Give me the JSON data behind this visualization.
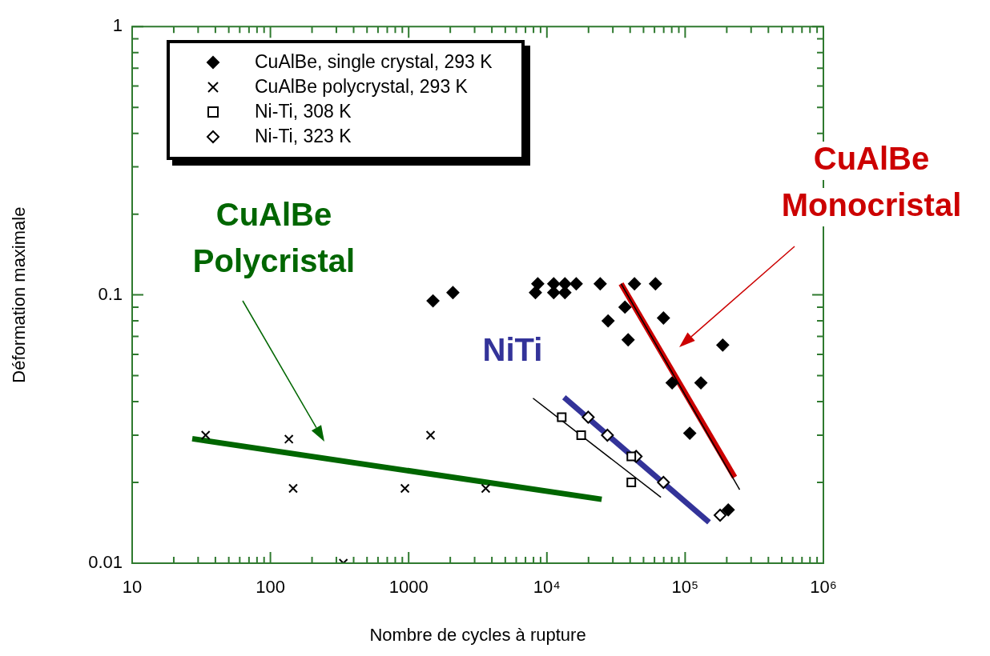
{
  "chart_data": {
    "type": "scatter",
    "xlabel": "Nombre de cycles à rupture",
    "ylabel": "Déformation maximale",
    "log": "xy",
    "grid": false,
    "legend": "top left",
    "xlim": [
      10,
      1000000
    ],
    "xticks": [
      10,
      {
        "value": 20,
        "label": null
      },
      {
        "value": 30,
        "label": null
      },
      {
        "value": 40,
        "label": null
      },
      {
        "value": 50,
        "label": null
      },
      {
        "value": 60,
        "label": null
      },
      {
        "value": 70,
        "label": null
      },
      {
        "value": 80,
        "label": null
      },
      {
        "value": 90,
        "label": null
      },
      100,
      {
        "value": 200,
        "label": null
      },
      {
        "value": 300,
        "label": null
      },
      {
        "value": 400,
        "label": null
      },
      {
        "value": 500,
        "label": null
      },
      {
        "value": 600,
        "label": null
      },
      {
        "value": 700,
        "label": null
      },
      {
        "value": 800,
        "label": null
      },
      {
        "value": 900,
        "label": null
      },
      1000,
      {
        "value": 2000,
        "label": null
      },
      {
        "value": 3000,
        "label": null
      },
      {
        "value": 4000,
        "label": null
      },
      {
        "value": 5000,
        "label": null
      },
      {
        "value": 6000,
        "label": null
      },
      {
        "value": 7000,
        "label": null
      },
      {
        "value": 8000,
        "label": null
      },
      {
        "value": 9000,
        "label": null
      },
      {
        "value": 10000,
        "label": "10⁴"
      },
      {
        "value": 20000,
        "label": null
      },
      {
        "value": 30000,
        "label": null
      },
      {
        "value": 40000,
        "label": null
      },
      {
        "value": 50000,
        "label": null
      },
      {
        "value": 60000,
        "label": null
      },
      {
        "value": 70000,
        "label": null
      },
      {
        "value": 80000,
        "label": null
      },
      {
        "value": 90000,
        "label": null
      },
      {
        "value": 100000,
        "label": "10⁵"
      },
      {
        "value": 200000,
        "label": null
      },
      {
        "value": 300000,
        "label": null
      },
      {
        "value": 400000,
        "label": null
      },
      {
        "value": 500000,
        "label": null
      },
      {
        "value": 600000,
        "label": null
      },
      {
        "value": 700000,
        "label": null
      },
      {
        "value": 800000,
        "label": null
      },
      {
        "value": 900000,
        "label": null
      },
      {
        "value": 1000000,
        "label": "10⁶"
      }
    ],
    "ylim": [
      0.01,
      1
    ],
    "yticks": [
      0.01,
      {
        "value": 0.02,
        "label": null
      },
      {
        "value": 0.03,
        "label": null
      },
      {
        "value": 0.04,
        "label": null
      },
      {
        "value": 0.05,
        "label": null
      },
      {
        "value": 0.06,
        "label": null
      },
      {
        "value": 0.07,
        "label": null
      },
      {
        "value": 0.08,
        "label": null
      },
      {
        "value": 0.09,
        "label": null
      },
      0.1,
      {
        "value": 0.2,
        "label": null
      },
      {
        "value": 0.3,
        "label": null
      },
      {
        "value": 0.4,
        "label": null
      },
      {
        "value": 0.5,
        "label": null
      },
      {
        "value": 0.6,
        "label": null
      },
      {
        "value": 0.7,
        "label": null
      },
      {
        "value": 0.8,
        "label": null
      },
      {
        "value": 0.9,
        "label": null
      },
      1
    ],
    "series": [
      {
        "name": "CuAlBe, single crystal, 293 K",
        "marker": "diamond",
        "color": "#000000",
        "x": [
          1500,
          2090,
          8260,
          8590,
          11200,
          11200,
          13500,
          13500,
          16300,
          24300,
          43000,
          61000,
          36700,
          27700,
          69700,
          38700,
          187000,
          80500,
          130000,
          108000,
          205000
        ],
        "values": [
          0.095,
          0.102,
          0.102,
          0.11,
          0.11,
          0.102,
          0.11,
          0.102,
          0.11,
          0.11,
          0.11,
          0.11,
          0.09,
          0.08,
          0.082,
          0.068,
          0.065,
          0.047,
          0.047,
          0.0305,
          0.0158
        ]
      },
      {
        "name": "CuAlBe polycrystal, 293 K",
        "marker": "cross",
        "color": "#000000",
        "x": [
          34,
          136,
          146,
          940,
          1440,
          3610,
          337
        ],
        "values": [
          0.03,
          0.029,
          0.019,
          0.019,
          0.03,
          0.019,
          0.01
        ]
      },
      {
        "name": "Ni-Ti, 308 K",
        "marker": "square",
        "color": "#000000",
        "x": [
          12800,
          17700,
          40800,
          40800
        ],
        "values": [
          0.035,
          0.03,
          0.025,
          0.02
        ]
      },
      {
        "name": "Ni-Ti, 323 K",
        "marker": "diamond",
        "color": "#000000",
        "x": [
          19900,
          27400,
          44200,
          69700,
          179000
        ],
        "values": [
          0.035,
          0.03,
          0.025,
          0.02,
          0.0151
        ]
      },
      {
        "type": "line",
        "marker": "none",
        "color": "#000000",
        "x": [
          34400,
          248000
        ],
        "values": [
          0.11,
          0.0188
        ]
      },
      {
        "type": "line",
        "marker": "none",
        "color": "#000000",
        "x": [
          7930,
          66800
        ],
        "values": [
          0.0412,
          0.0176
        ]
      },
      {
        "type": "line",
        "marker": "none",
        "color": "#006600",
        "x": [
          27.2,
          24900
        ],
        "values": [
          0.0291,
          0.0173
        ]
      },
      {
        "type": "line",
        "marker": "none",
        "color": "#cc0000",
        "x": [
          34400,
          228000
        ],
        "values": [
          0.11,
          0.0209
        ]
      },
      {
        "type": "line",
        "marker": "none",
        "color": "#333399",
        "x": [
          13300,
          149000
        ],
        "values": [
          0.0415,
          0.0142
        ]
      }
    ],
    "annotations": [
      "CuAlBe Polycristal",
      "CuAlBe Monocristal",
      "NiTi"
    ]
  }
}
